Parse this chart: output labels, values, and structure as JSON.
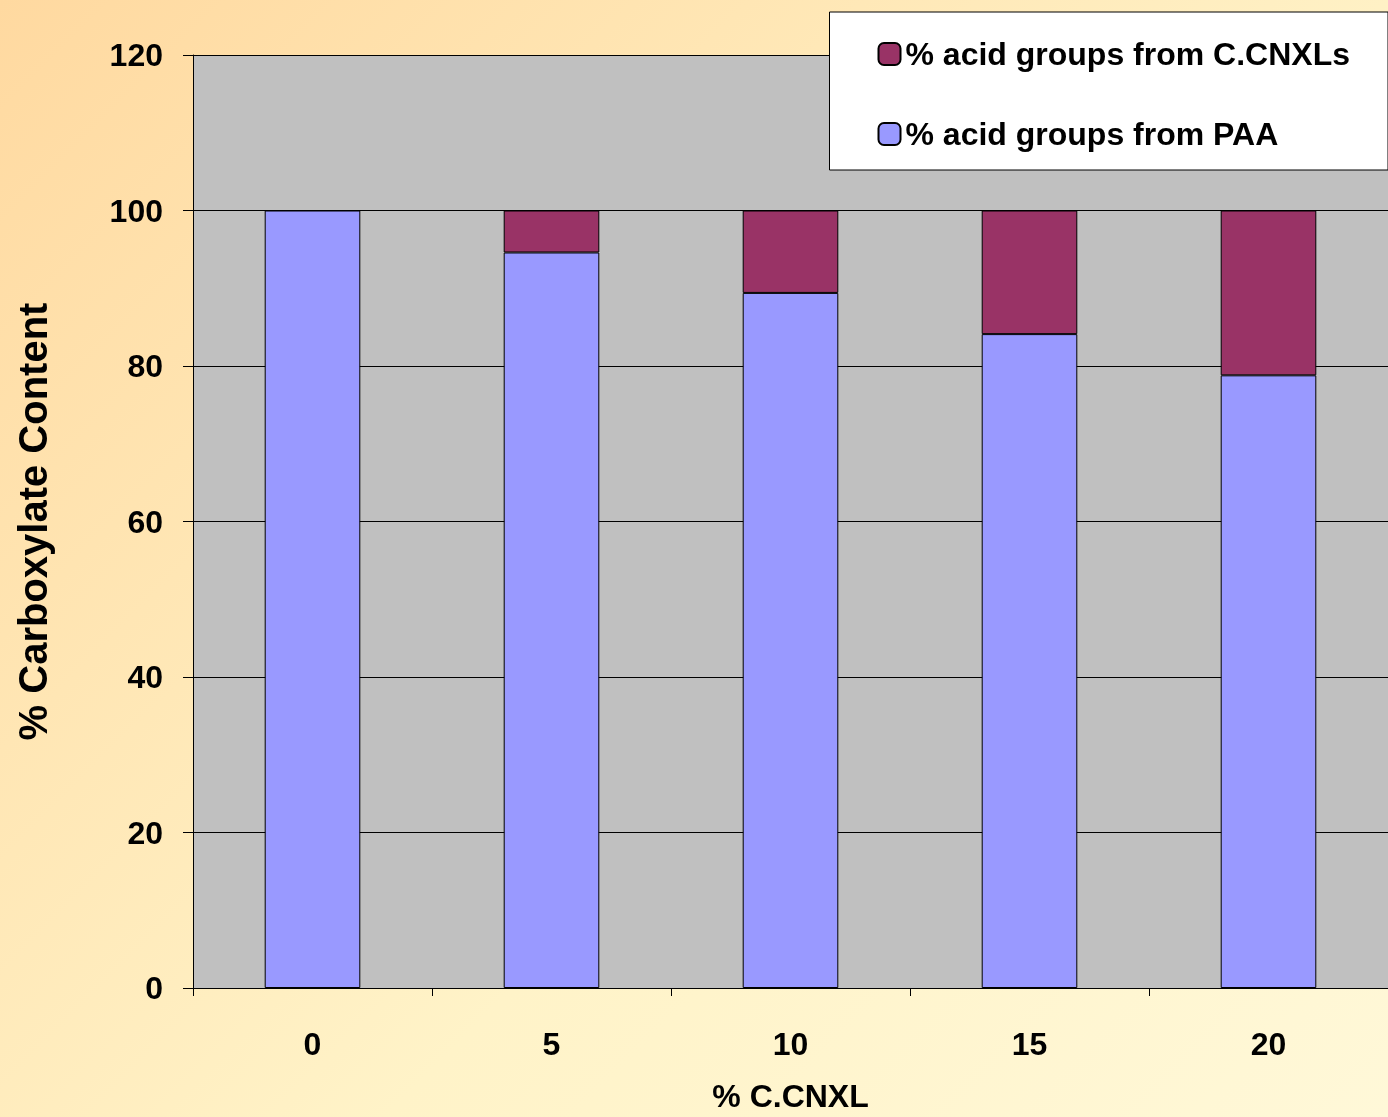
{
  "chart_data": {
    "type": "bar",
    "stacked": true,
    "xlabel": "% C.CNXL",
    "ylabel": "% Carboxylate Content",
    "categories": [
      "0",
      "5",
      "10",
      "15",
      "20"
    ],
    "series": [
      {
        "name": "% acid groups from PAA",
        "color": "#9999ff",
        "values": [
          100,
          94.6,
          89.4,
          84.1,
          78.8
        ]
      },
      {
        "name": "% acid groups from C.CNXLs",
        "color": "#993366",
        "values": [
          null,
          5.4,
          10.6,
          15.9,
          21.2
        ]
      }
    ],
    "ylim": [
      0,
      120
    ],
    "yticks": [
      0,
      20,
      40,
      60,
      80,
      100,
      120
    ],
    "grid": "y",
    "legend": "top right"
  }
}
